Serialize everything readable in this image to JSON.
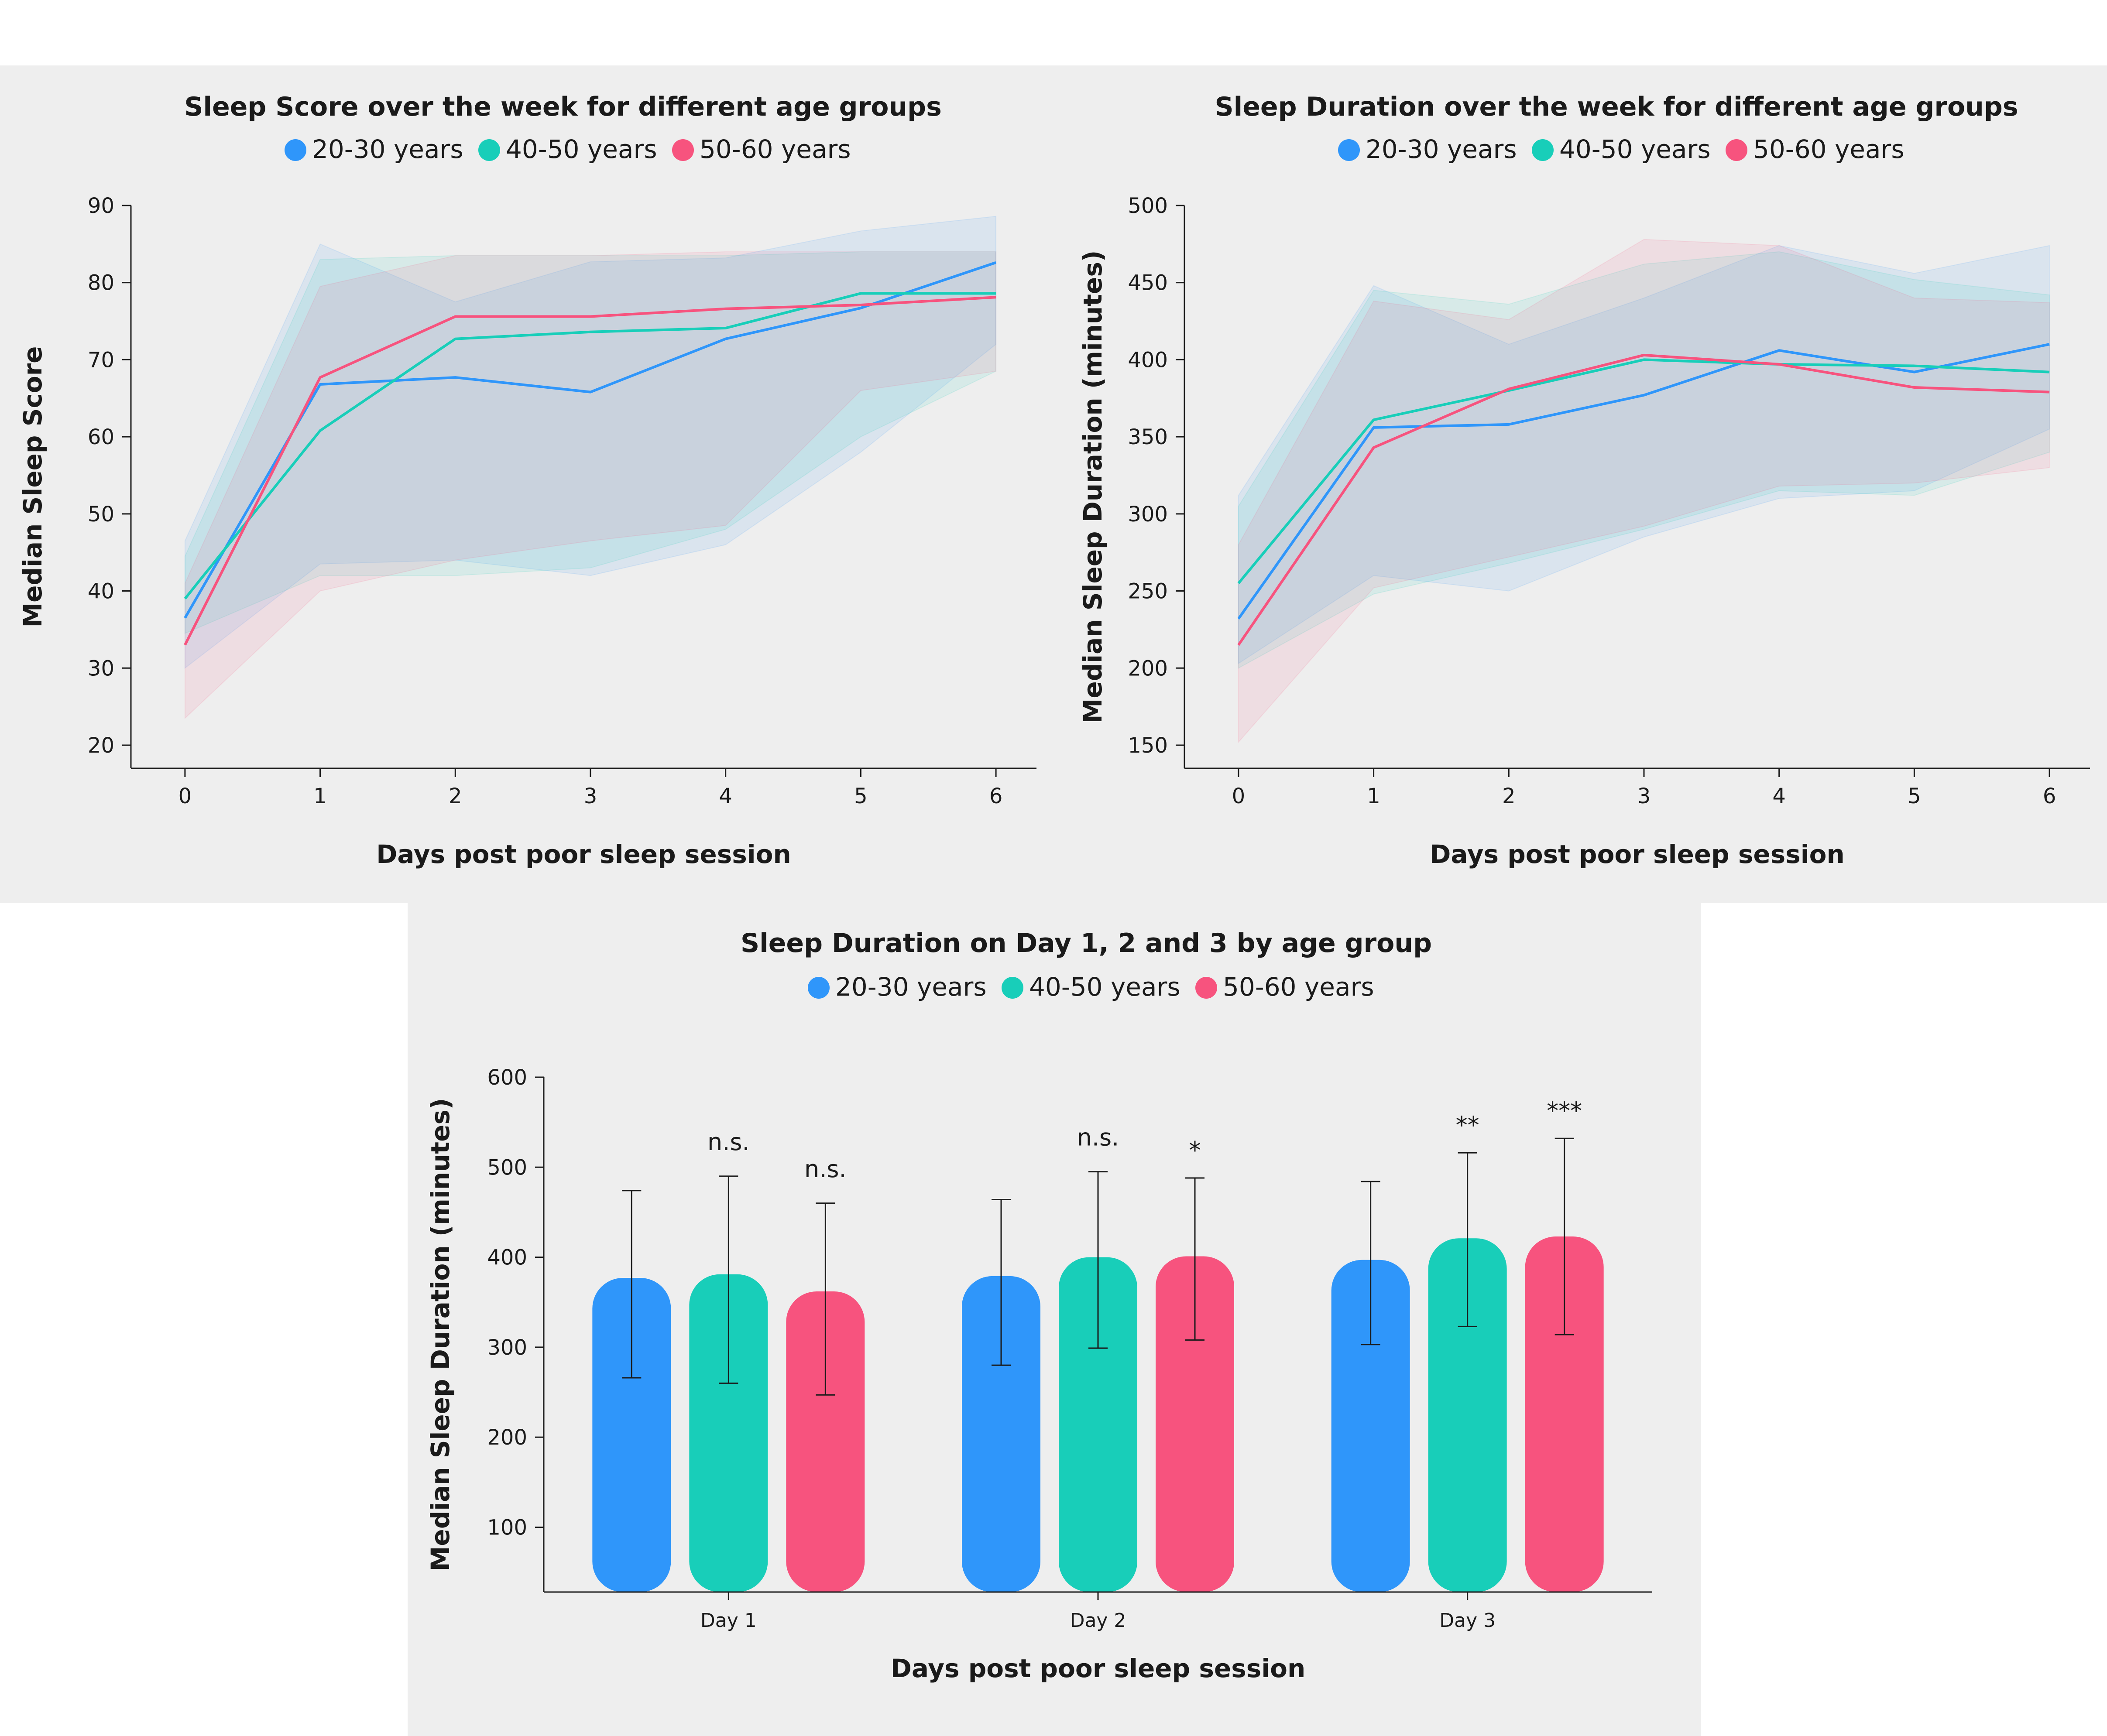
{
  "colors": {
    "panel_bg": "#eeeeee",
    "series_20_30": "#2f96fa",
    "series_40_50": "#18ceb9",
    "series_50_60": "#f7537e"
  },
  "legend": [
    "20-30 years",
    "40-50 years",
    "50-60 years"
  ],
  "chart_data": [
    {
      "type": "line",
      "title": "Sleep Score over the week for different age groups",
      "xlabel": "Days post poor sleep session",
      "ylabel": "Median Sleep Score",
      "x": [
        0,
        1,
        2,
        3,
        4,
        5,
        6
      ],
      "xlim": [
        -0.4,
        6.3
      ],
      "ylim": [
        17,
        90
      ],
      "yticks": [
        20,
        30,
        40,
        50,
        60,
        70,
        80,
        90
      ],
      "legend_position": "top",
      "grid": false,
      "series": [
        {
          "name": "20-30 years",
          "color": "#2f96fa",
          "values": [
            36.5,
            66.8,
            67.7,
            65.8,
            72.7,
            76.7,
            82.6
          ],
          "band_upper": [
            46.5,
            85,
            77.5,
            82.7,
            83.2,
            86.7,
            88.6
          ],
          "band_lower": [
            30,
            43.5,
            44,
            42,
            46,
            58,
            72
          ]
        },
        {
          "name": "40-50 years",
          "color": "#18ceb9",
          "values": [
            39,
            60.8,
            72.7,
            73.6,
            74.1,
            78.6,
            78.6
          ],
          "band_upper": [
            44.5,
            83,
            83.5,
            83.5,
            83.5,
            84,
            84
          ],
          "band_lower": [
            34.5,
            42,
            42,
            43,
            48,
            60,
            68.5
          ]
        },
        {
          "name": "50-60 years",
          "color": "#f7537e",
          "values": [
            33,
            67.7,
            75.6,
            75.6,
            76.6,
            77.1,
            78.1
          ],
          "band_upper": [
            41,
            79.5,
            83.5,
            83.5,
            84,
            84,
            84
          ],
          "band_lower": [
            23.5,
            40,
            44,
            46.5,
            48.5,
            66,
            68.5
          ]
        }
      ]
    },
    {
      "type": "line",
      "title": "Sleep Duration over the week for different age groups",
      "xlabel": "Days post poor sleep session",
      "ylabel": "Median Sleep Duration (minutes)",
      "x": [
        0,
        1,
        2,
        3,
        4,
        5,
        6
      ],
      "xlim": [
        -0.4,
        6.3
      ],
      "ylim": [
        135,
        500
      ],
      "yticks": [
        150,
        200,
        250,
        300,
        350,
        400,
        450,
        500
      ],
      "legend_position": "top",
      "grid": false,
      "series": [
        {
          "name": "20-30 years",
          "color": "#2f96fa",
          "values": [
            232,
            356,
            358,
            377,
            406,
            392,
            410
          ],
          "band_upper": [
            312,
            448,
            410,
            440,
            474,
            456,
            474
          ],
          "band_lower": [
            203,
            260,
            250,
            285,
            310,
            315,
            355
          ]
        },
        {
          "name": "40-50 years",
          "color": "#18ceb9",
          "values": [
            255,
            361,
            380,
            400,
            397,
            396,
            392
          ],
          "band_upper": [
            305,
            445,
            436,
            462,
            470,
            452,
            442
          ],
          "band_lower": [
            200,
            248,
            268,
            290,
            315,
            312,
            340
          ]
        },
        {
          "name": "50-60 years",
          "color": "#f7537e",
          "values": [
            215,
            343,
            381,
            403,
            397,
            382,
            379
          ],
          "band_upper": [
            280,
            438,
            426,
            478,
            474,
            440,
            437
          ],
          "band_lower": [
            152,
            252,
            272,
            292,
            318,
            320,
            330
          ]
        }
      ]
    },
    {
      "type": "bar",
      "title": "Sleep Duration on Day 1, 2 and 3 by age group",
      "xlabel": "Days post poor sleep session",
      "ylabel": "Median Sleep Duration (minutes)",
      "categories": [
        "Day 1",
        "Day 2",
        "Day 3"
      ],
      "ylim": [
        28,
        600
      ],
      "yticks": [
        100,
        200,
        300,
        400,
        500,
        600
      ],
      "legend_position": "top",
      "grid": false,
      "series": [
        {
          "name": "20-30 years",
          "color": "#2f96fa",
          "values": [
            377,
            379,
            397
          ],
          "err_low": [
            266,
            280,
            303
          ],
          "err_high": [
            474,
            464,
            484
          ],
          "annotations": [
            "",
            "",
            ""
          ]
        },
        {
          "name": "40-50 years",
          "color": "#18ceb9",
          "values": [
            381,
            400,
            421
          ],
          "err_low": [
            260,
            299,
            323
          ],
          "err_high": [
            490,
            495,
            516
          ],
          "annotations": [
            "n.s.",
            "n.s.",
            "**"
          ]
        },
        {
          "name": "50-60 years",
          "color": "#f7537e",
          "values": [
            362,
            401,
            423
          ],
          "err_low": [
            247,
            308,
            314
          ],
          "err_high": [
            460,
            488,
            532
          ],
          "annotations": [
            "n.s.",
            "*",
            "***"
          ]
        }
      ]
    }
  ]
}
